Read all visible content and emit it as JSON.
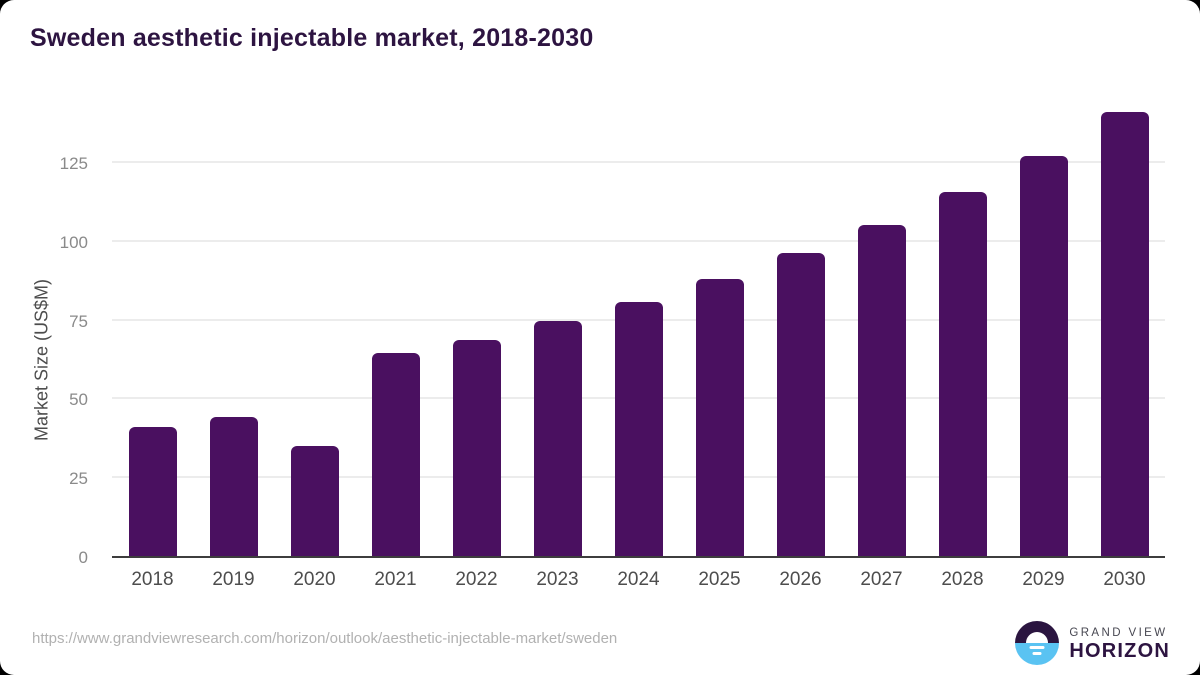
{
  "title": "Sweden aesthetic injectable market, 2018-2030",
  "chart_data": {
    "type": "bar",
    "title": "Sweden aesthetic injectable market, 2018-2030",
    "categories": [
      "2018",
      "2019",
      "2020",
      "2021",
      "2022",
      "2023",
      "2024",
      "2025",
      "2026",
      "2027",
      "2028",
      "2029",
      "2030"
    ],
    "values": [
      41,
      44,
      35,
      64.5,
      68.5,
      74.5,
      80.5,
      88,
      96,
      105,
      115.5,
      127,
      141
    ],
    "xlabel": "",
    "ylabel": "Market Size (US$M)",
    "yticks": [
      0,
      25,
      50,
      75,
      100,
      125
    ],
    "ylim": [
      0,
      145
    ],
    "grid": true,
    "legend": "none",
    "bar_color": "#4a1060",
    "gridline_color": "#ececec",
    "axis_line_color": "#3d3d3d"
  },
  "footer": {
    "source_url": "https://www.grandviewresearch.com/horizon/outlook/aesthetic-injectable-market/sweden"
  },
  "logo": {
    "line1": "GRAND VIEW",
    "line2": "HORIZON"
  },
  "colors": {
    "title_text": "#2d1441",
    "x_tick_label": "#4d4d4d",
    "y_tick_label": "#8a8a8a",
    "source_text": "#b1b1b1",
    "logo_dark_half": "#2b1540",
    "logo_blue_half": "#5ac3f2"
  }
}
